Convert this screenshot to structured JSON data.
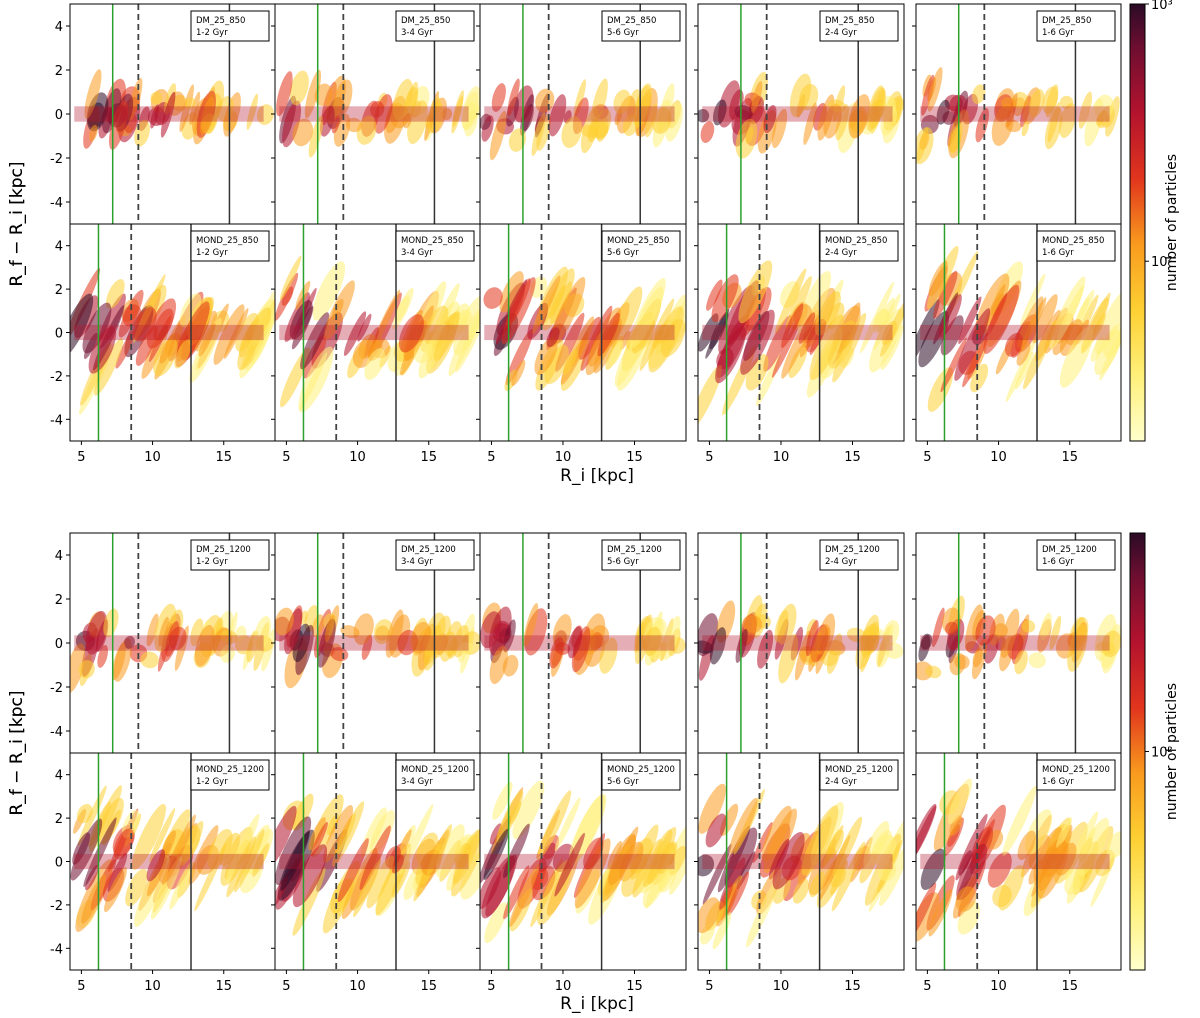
{
  "chart_data": [
    {
      "type": "heatmap",
      "title": "",
      "xlabel": "R_i [kpc]",
      "ylabel": "R_f − R_i [kpc]",
      "xlim": [
        4.2,
        18.6
      ],
      "ylim": [
        -5,
        5
      ],
      "x_ticks": [
        5,
        10,
        15
      ],
      "y_ticks": [
        -4,
        -2,
        0,
        2,
        4
      ],
      "colorbar": {
        "label": "number of particles",
        "scale": "log",
        "ticks": [
          "10³",
          "10²"
        ],
        "range": [
          20,
          1000
        ]
      },
      "rows": [
        {
          "model": "DM",
          "panels": [
            {
              "label": "DM_25_850",
              "time": "1-2 Gyr"
            },
            {
              "label": "DM_25_850",
              "time": "3-4 Gyr"
            },
            {
              "label": "DM_25_850",
              "time": "5-6 Gyr"
            },
            {
              "label": "DM_25_850",
              "time": "2-4 Gyr"
            },
            {
              "label": "DM_25_850",
              "time": "1-6 Gyr"
            }
          ],
          "vlines": {
            "green": 7.2,
            "dashed": 9.0,
            "solid": 15.4
          }
        },
        {
          "model": "MOND",
          "panels": [
            {
              "label": "MOND_25_850",
              "time": "1-2 Gyr"
            },
            {
              "label": "MOND_25_850",
              "time": "3-4 Gyr"
            },
            {
              "label": "MOND_25_850",
              "time": "5-6 Gyr"
            },
            {
              "label": "MOND_25_850",
              "time": "2-4 Gyr"
            },
            {
              "label": "MOND_25_850",
              "time": "1-6 Gyr"
            }
          ],
          "vlines": {
            "green": 6.2,
            "dashed": 8.5,
            "solid": 12.7
          }
        }
      ]
    },
    {
      "type": "heatmap",
      "title": "",
      "xlabel": "R_i [kpc]",
      "ylabel": "R_f − R_i [kpc]",
      "xlim": [
        4.2,
        18.6
      ],
      "ylim": [
        -5,
        5
      ],
      "x_ticks": [
        5,
        10,
        15
      ],
      "y_ticks": [
        -4,
        -2,
        0,
        2,
        4
      ],
      "colorbar": {
        "label": "number of particles",
        "scale": "log",
        "ticks": [
          "10²"
        ],
        "range": [
          20,
          500
        ]
      },
      "rows": [
        {
          "model": "DM",
          "panels": [
            {
              "label": "DM_25_1200",
              "time": "1-2 Gyr"
            },
            {
              "label": "DM_25_1200",
              "time": "3-4 Gyr"
            },
            {
              "label": "DM_25_1200",
              "time": "5-6 Gyr"
            },
            {
              "label": "DM_25_1200",
              "time": "2-4 Gyr"
            },
            {
              "label": "DM_25_1200",
              "time": "1-6 Gyr"
            }
          ],
          "vlines": {
            "green": 7.2,
            "dashed": 9.0,
            "solid": 15.4
          }
        },
        {
          "model": "MOND",
          "panels": [
            {
              "label": "MOND_25_1200",
              "time": "1-2 Gyr"
            },
            {
              "label": "MOND_25_1200",
              "time": "3-4 Gyr"
            },
            {
              "label": "MOND_25_1200",
              "time": "5-6 Gyr"
            },
            {
              "label": "MOND_25_1200",
              "time": "2-4 Gyr"
            },
            {
              "label": "MOND_25_1200",
              "time": "1-6 Gyr"
            }
          ],
          "vlines": {
            "green": 6.2,
            "dashed": 8.5,
            "solid": 12.7
          }
        }
      ]
    }
  ],
  "colors": {
    "green_line": "#2ca02c",
    "dashed_line": "#444444",
    "solid_line": "#333333"
  }
}
